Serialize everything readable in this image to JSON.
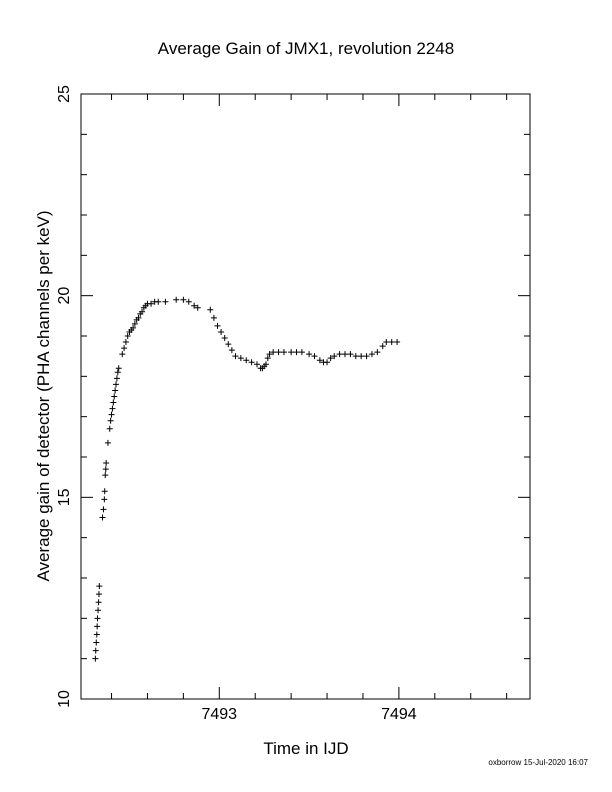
{
  "chart_data": {
    "type": "scatter",
    "title": "Average Gain of JMX1, revolution 2248",
    "xlabel": "Time in IJD",
    "ylabel": "Average gain of detector (PHA channels per keV)",
    "xlim": [
      7492.23,
      7494.73
    ],
    "ylim": [
      10,
      25
    ],
    "x_ticks": [
      7493,
      7494
    ],
    "x_tick_labels": [
      "7493",
      "7494"
    ],
    "y_ticks": [
      10,
      15,
      20,
      25
    ],
    "y_tick_labels": [
      "10",
      "15",
      "20",
      "25"
    ],
    "grid": false,
    "legend": "none",
    "marker": "plus",
    "points": [
      [
        7492.31,
        11.0
      ],
      [
        7492.312,
        11.2
      ],
      [
        7492.315,
        11.4
      ],
      [
        7492.318,
        11.6
      ],
      [
        7492.32,
        11.8
      ],
      [
        7492.322,
        12.0
      ],
      [
        7492.325,
        12.2
      ],
      [
        7492.328,
        12.4
      ],
      [
        7492.33,
        12.6
      ],
      [
        7492.332,
        12.8
      ],
      [
        7492.35,
        14.5
      ],
      [
        7492.355,
        14.7
      ],
      [
        7492.36,
        14.95
      ],
      [
        7492.362,
        15.15
      ],
      [
        7492.365,
        15.55
      ],
      [
        7492.368,
        15.7
      ],
      [
        7492.37,
        15.85
      ],
      [
        7492.38,
        16.35
      ],
      [
        7492.39,
        16.7
      ],
      [
        7492.395,
        16.9
      ],
      [
        7492.4,
        17.05
      ],
      [
        7492.405,
        17.2
      ],
      [
        7492.41,
        17.35
      ],
      [
        7492.415,
        17.5
      ],
      [
        7492.42,
        17.65
      ],
      [
        7492.425,
        17.8
      ],
      [
        7492.43,
        17.95
      ],
      [
        7492.435,
        18.1
      ],
      [
        7492.44,
        18.2
      ],
      [
        7492.46,
        18.55
      ],
      [
        7492.47,
        18.7
      ],
      [
        7492.48,
        18.85
      ],
      [
        7492.49,
        19.0
      ],
      [
        7492.5,
        19.1
      ],
      [
        7492.51,
        19.15
      ],
      [
        7492.52,
        19.2
      ],
      [
        7492.53,
        19.3
      ],
      [
        7492.54,
        19.4
      ],
      [
        7492.55,
        19.45
      ],
      [
        7492.56,
        19.55
      ],
      [
        7492.57,
        19.6
      ],
      [
        7492.58,
        19.7
      ],
      [
        7492.59,
        19.75
      ],
      [
        7492.6,
        19.8
      ],
      [
        7492.62,
        19.8
      ],
      [
        7492.64,
        19.85
      ],
      [
        7492.66,
        19.85
      ],
      [
        7492.7,
        19.85
      ],
      [
        7492.76,
        19.9
      ],
      [
        7492.8,
        19.9
      ],
      [
        7492.83,
        19.85
      ],
      [
        7492.86,
        19.75
      ],
      [
        7492.88,
        19.7
      ],
      [
        7492.95,
        19.65
      ],
      [
        7492.97,
        19.45
      ],
      [
        7492.99,
        19.25
      ],
      [
        7493.01,
        19.1
      ],
      [
        7493.03,
        18.95
      ],
      [
        7493.05,
        18.8
      ],
      [
        7493.07,
        18.65
      ],
      [
        7493.09,
        18.5
      ],
      [
        7493.12,
        18.45
      ],
      [
        7493.15,
        18.4
      ],
      [
        7493.18,
        18.35
      ],
      [
        7493.21,
        18.3
      ],
      [
        7493.23,
        18.2
      ],
      [
        7493.24,
        18.2
      ],
      [
        7493.25,
        18.25
      ],
      [
        7493.26,
        18.3
      ],
      [
        7493.27,
        18.45
      ],
      [
        7493.28,
        18.55
      ],
      [
        7493.3,
        18.6
      ],
      [
        7493.33,
        18.6
      ],
      [
        7493.36,
        18.6
      ],
      [
        7493.4,
        18.6
      ],
      [
        7493.43,
        18.6
      ],
      [
        7493.46,
        18.6
      ],
      [
        7493.5,
        18.55
      ],
      [
        7493.53,
        18.5
      ],
      [
        7493.56,
        18.4
      ],
      [
        7493.58,
        18.35
      ],
      [
        7493.6,
        18.35
      ],
      [
        7493.62,
        18.45
      ],
      [
        7493.64,
        18.5
      ],
      [
        7493.67,
        18.55
      ],
      [
        7493.7,
        18.55
      ],
      [
        7493.73,
        18.55
      ],
      [
        7493.76,
        18.5
      ],
      [
        7493.79,
        18.5
      ],
      [
        7493.82,
        18.5
      ],
      [
        7493.85,
        18.55
      ],
      [
        7493.88,
        18.6
      ],
      [
        7493.91,
        18.75
      ],
      [
        7493.93,
        18.85
      ],
      [
        7493.96,
        18.85
      ],
      [
        7493.99,
        18.85
      ]
    ]
  },
  "footer_text": "oxborrow 15-Jul-2020 16:07"
}
